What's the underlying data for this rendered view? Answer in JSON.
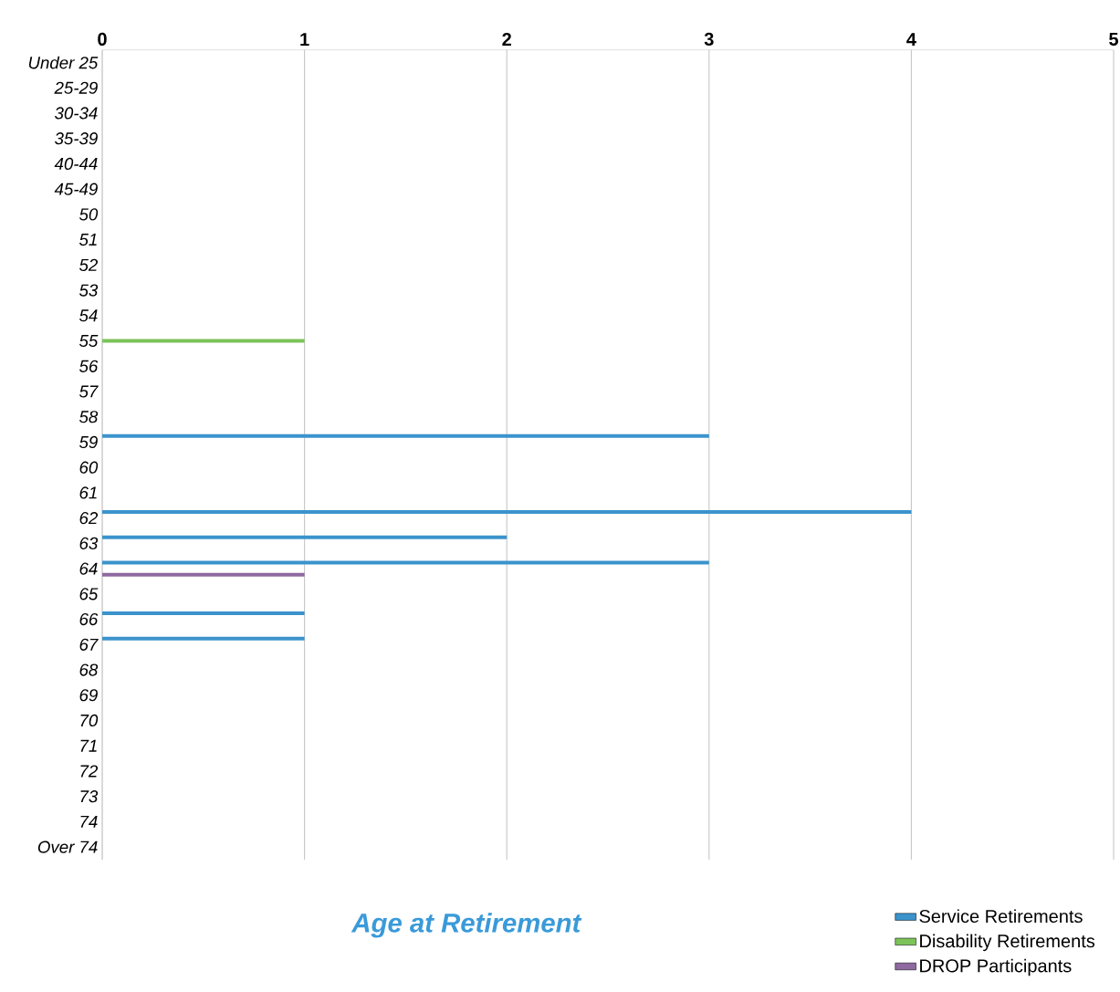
{
  "chart_data": {
    "type": "bar",
    "orientation": "horizontal",
    "title": "Age at Retirement",
    "categories": [
      "Under 25",
      "25-29",
      "30-34",
      "35-39",
      "40-44",
      "45-49",
      "50",
      "51",
      "52",
      "53",
      "54",
      "55",
      "56",
      "57",
      "58",
      "59",
      "60",
      "61",
      "62",
      "63",
      "64",
      "65",
      "66",
      "67",
      "68",
      "69",
      "70",
      "71",
      "72",
      "73",
      "74",
      "Over 74"
    ],
    "series": [
      {
        "name": "Service Retirements",
        "color": "#3b93cc",
        "values": [
          0,
          0,
          0,
          0,
          0,
          0,
          0,
          0,
          0,
          0,
          0,
          0,
          0,
          0,
          0,
          3,
          0,
          0,
          4,
          2,
          3,
          0,
          1,
          1,
          0,
          0,
          0,
          0,
          0,
          0,
          0,
          0
        ]
      },
      {
        "name": "Disability Retirements",
        "color": "#7cc45a",
        "values": [
          0,
          0,
          0,
          0,
          0,
          0,
          0,
          0,
          0,
          0,
          0,
          1,
          0,
          0,
          0,
          0,
          0,
          0,
          0,
          0,
          0,
          0,
          0,
          0,
          0,
          0,
          0,
          0,
          0,
          0,
          0,
          0
        ]
      },
      {
        "name": "DROP Participants",
        "color": "#8e6aa0",
        "values": [
          0,
          0,
          0,
          0,
          0,
          0,
          0,
          0,
          0,
          0,
          0,
          0,
          0,
          0,
          0,
          0,
          0,
          0,
          0,
          0,
          1,
          0,
          0,
          0,
          0,
          0,
          0,
          0,
          0,
          0,
          0,
          0
        ]
      }
    ],
    "xlim": [
      0,
      5
    ],
    "xticks": [
      0,
      1,
      2,
      3,
      4,
      5
    ],
    "grid": "x",
    "legend": "bottom right"
  }
}
